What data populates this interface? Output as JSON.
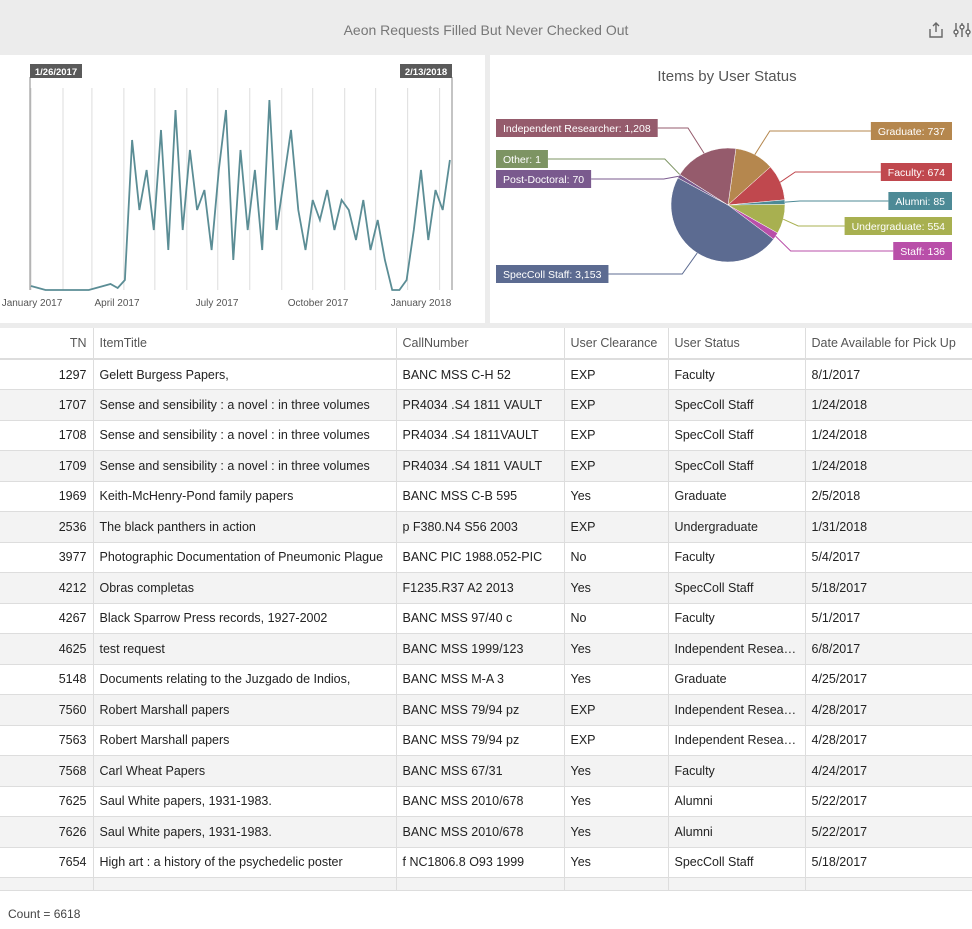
{
  "header": {
    "title": "Aeon Requests Filled But Never Checked Out",
    "share_icon": "share-icon",
    "settings_icon": "sliders-icon"
  },
  "colors": {
    "line": "#5b8d95",
    "Independent Researcher": "#955b6c",
    "Graduate": "#b5874e",
    "Faculty": "#c0484e",
    "Alumni": "#4d8a96",
    "Undergraduate": "#a8b050",
    "Staff": "#b94fa9",
    "SpecColl Staff": "#5c6b91",
    "Post-Doctoral": "#7a5a8e",
    "Other": "#7d9463"
  },
  "chart_data": [
    {
      "type": "line",
      "title": "",
      "range_start_label": "1/26/2017",
      "range_end_label": "2/13/2018",
      "x_ticks": [
        "January 2017",
        "April 2017",
        "July 2017",
        "October 2017",
        "January 2018"
      ],
      "grid": "vertical monthly",
      "y_axis": "unlabeled (relative)",
      "x": [
        "2017-01-01",
        "2017-01-08",
        "2017-01-15",
        "2017-01-22",
        "2017-01-29",
        "2017-02-05",
        "2017-02-12",
        "2017-02-19",
        "2017-02-26",
        "2017-03-05",
        "2017-03-12",
        "2017-03-19",
        "2017-03-26",
        "2017-04-02",
        "2017-04-09",
        "2017-04-16",
        "2017-04-23",
        "2017-04-30",
        "2017-05-07",
        "2017-05-14",
        "2017-05-21",
        "2017-05-28",
        "2017-06-04",
        "2017-06-11",
        "2017-06-18",
        "2017-06-25",
        "2017-07-02",
        "2017-07-09",
        "2017-07-16",
        "2017-07-23",
        "2017-07-30",
        "2017-08-06",
        "2017-08-13",
        "2017-08-20",
        "2017-08-27",
        "2017-09-03",
        "2017-09-10",
        "2017-09-17",
        "2017-09-24",
        "2017-10-01",
        "2017-10-08",
        "2017-10-15",
        "2017-10-22",
        "2017-10-29",
        "2017-11-05",
        "2017-11-12",
        "2017-11-19",
        "2017-11-26",
        "2017-12-03",
        "2017-12-10",
        "2017-12-17",
        "2017-12-24",
        "2017-12-31",
        "2018-01-07",
        "2018-01-14",
        "2018-01-21",
        "2018-01-28",
        "2018-02-04",
        "2018-02-11"
      ],
      "y": [
        2,
        1,
        0,
        0,
        0,
        0,
        0,
        0,
        0,
        1,
        2,
        3,
        1,
        5,
        75,
        40,
        60,
        30,
        80,
        20,
        90,
        30,
        70,
        40,
        50,
        20,
        60,
        90,
        15,
        70,
        30,
        60,
        20,
        95,
        30,
        55,
        80,
        40,
        20,
        45,
        35,
        50,
        30,
        45,
        40,
        25,
        45,
        20,
        35,
        15,
        0,
        0,
        5,
        30,
        60,
        25,
        50,
        40,
        65
      ]
    },
    {
      "type": "pie",
      "title": "Items by User Status",
      "slices": [
        {
          "label": "Graduate",
          "value": 737,
          "display": "Graduate: 737"
        },
        {
          "label": "Faculty",
          "value": 674,
          "display": "Faculty: 674"
        },
        {
          "label": "Alumni",
          "value": 85,
          "display": "Alumni: 85"
        },
        {
          "label": "Undergraduate",
          "value": 554,
          "display": "Undergraduate: 554"
        },
        {
          "label": "Staff",
          "value": 136,
          "display": "Staff: 136"
        },
        {
          "label": "SpecColl Staff",
          "value": 3153,
          "display": "SpecColl Staff: 3,153"
        },
        {
          "label": "Post-Doctoral",
          "value": 70,
          "display": "Post-Doctoral: 70"
        },
        {
          "label": "Other",
          "value": 1,
          "display": "Other: 1"
        },
        {
          "label": "Independent Researcher",
          "value": 1208,
          "display": "Independent Researcher: 1,208"
        }
      ]
    }
  ],
  "table": {
    "columns": [
      "TN",
      "ItemTitle",
      "CallNumber",
      "User Clearance",
      "User Status",
      "Date Available for Pick Up"
    ],
    "rows": [
      [
        "1297",
        "Gelett Burgess Papers,",
        "BANC MSS C-H 52",
        "EXP",
        "Faculty",
        "8/1/2017"
      ],
      [
        "1707",
        "Sense and sensibility : a novel : in three volumes",
        "PR4034 .S4 1811 VAULT",
        "EXP",
        "SpecColl Staff",
        "1/24/2018"
      ],
      [
        "1708",
        "Sense and sensibility : a novel : in three volumes",
        "PR4034 .S4 1811VAULT",
        "EXP",
        "SpecColl Staff",
        "1/24/2018"
      ],
      [
        "1709",
        "Sense and sensibility : a novel : in three volumes",
        "PR4034 .S4 1811 VAULT",
        "EXP",
        "SpecColl Staff",
        "1/24/2018"
      ],
      [
        "1969",
        "Keith-McHenry-Pond family papers",
        "BANC MSS C-B 595",
        "Yes",
        "Graduate",
        "2/5/2018"
      ],
      [
        "2536",
        "The black panthers in action",
        "p F380.N4 S56 2003",
        "EXP",
        "Undergraduate",
        "1/31/2018"
      ],
      [
        "3977",
        "Photographic Documentation of Pneumonic Plague",
        "BANC PIC 1988.052-PIC",
        "No",
        "Faculty",
        "5/4/2017"
      ],
      [
        "4212",
        "Obras completas",
        "F1235.R37 A2 2013",
        "Yes",
        "SpecColl Staff",
        "5/18/2017"
      ],
      [
        "4267",
        "Black Sparrow Press records, 1927-2002",
        "BANC MSS 97/40 c",
        "No",
        "Faculty",
        "5/1/2017"
      ],
      [
        "4625",
        "test request",
        "BANC MSS 1999/123",
        "Yes",
        "Independent Researcher",
        "6/8/2017"
      ],
      [
        "5148",
        "Documents relating to the Juzgado de Indios,",
        "BANC MSS M-A 3",
        "Yes",
        "Graduate",
        "4/25/2017"
      ],
      [
        "7560",
        "Robert Marshall papers",
        "BANC MSS 79/94 pz",
        "EXP",
        "Independent Researcher",
        "4/28/2017"
      ],
      [
        "7563",
        "Robert Marshall papers",
        "BANC MSS 79/94 pz",
        "EXP",
        "Independent Researcher",
        "4/28/2017"
      ],
      [
        "7568",
        "Carl Wheat Papers",
        "BANC MSS 67/31",
        "Yes",
        "Faculty",
        "4/24/2017"
      ],
      [
        "7625",
        "Saul White papers, 1931-1983.",
        "BANC MSS 2010/678",
        "Yes",
        "Alumni",
        "5/22/2017"
      ],
      [
        "7626",
        "Saul White papers, 1931-1983.",
        "BANC MSS 2010/678",
        "Yes",
        "Alumni",
        "5/22/2017"
      ],
      [
        "7654",
        "High art : a history of the psychedelic poster",
        "f NC1806.8 O93 1999",
        "Yes",
        "SpecColl Staff",
        "5/18/2017"
      ]
    ]
  },
  "footer": {
    "count": "Count = 6618"
  }
}
